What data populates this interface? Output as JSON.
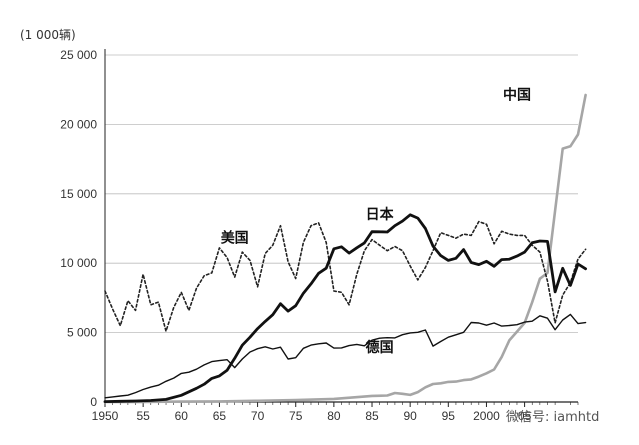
{
  "chart_data": {
    "type": "line",
    "unit_label": "(1 000辆)",
    "xlim": [
      1950,
      2012
    ],
    "ylim": [
      0,
      25000
    ],
    "grid": true,
    "x_tick_labels": [
      {
        "x": 1950,
        "label": "1950"
      },
      {
        "x": 1955,
        "label": "55"
      },
      {
        "x": 1960,
        "label": "60"
      },
      {
        "x": 1965,
        "label": "65"
      },
      {
        "x": 1970,
        "label": "70"
      },
      {
        "x": 1975,
        "label": "75"
      },
      {
        "x": 1980,
        "label": "80"
      },
      {
        "x": 1985,
        "label": "85"
      },
      {
        "x": 1990,
        "label": "90"
      },
      {
        "x": 1995,
        "label": "95"
      },
      {
        "x": 2000,
        "label": "2000"
      },
      {
        "x": 2005,
        "label": "05"
      }
    ],
    "y_ticks": [
      {
        "y": 0,
        "label": "0"
      },
      {
        "y": 5000,
        "label": "5 000"
      },
      {
        "y": 10000,
        "label": "10 000"
      },
      {
        "y": 15000,
        "label": "15 000"
      },
      {
        "y": 20000,
        "label": "20 000"
      },
      {
        "y": 25000,
        "label": "25 000"
      }
    ],
    "series": [
      {
        "name": "美国",
        "label_pos": {
          "x": 1967,
          "y": 11500
        },
        "style": "dotted",
        "color": "#222222",
        "points": [
          [
            1950,
            8000
          ],
          [
            1951,
            6700
          ],
          [
            1952,
            5500
          ],
          [
            1953,
            7300
          ],
          [
            1954,
            6600
          ],
          [
            1955,
            9200
          ],
          [
            1956,
            7000
          ],
          [
            1957,
            7200
          ],
          [
            1958,
            5100
          ],
          [
            1959,
            6800
          ],
          [
            1960,
            7900
          ],
          [
            1961,
            6600
          ],
          [
            1962,
            8200
          ],
          [
            1963,
            9100
          ],
          [
            1964,
            9300
          ],
          [
            1965,
            11100
          ],
          [
            1966,
            10400
          ],
          [
            1967,
            9000
          ],
          [
            1968,
            10800
          ],
          [
            1969,
            10200
          ],
          [
            1970,
            8300
          ],
          [
            1971,
            10700
          ],
          [
            1972,
            11300
          ],
          [
            1973,
            12700
          ],
          [
            1974,
            10100
          ],
          [
            1975,
            8900
          ],
          [
            1976,
            11500
          ],
          [
            1977,
            12700
          ],
          [
            1978,
            12900
          ],
          [
            1979,
            11500
          ],
          [
            1980,
            8000
          ],
          [
            1981,
            7900
          ],
          [
            1982,
            7000
          ],
          [
            1983,
            9200
          ],
          [
            1984,
            10900
          ],
          [
            1985,
            11700
          ],
          [
            1986,
            11300
          ],
          [
            1987,
            10900
          ],
          [
            1988,
            11200
          ],
          [
            1989,
            10900
          ],
          [
            1990,
            9800
          ],
          [
            1991,
            8800
          ],
          [
            1992,
            9700
          ],
          [
            1993,
            10900
          ],
          [
            1994,
            12200
          ],
          [
            1995,
            12000
          ],
          [
            1996,
            11800
          ],
          [
            1997,
            12100
          ],
          [
            1998,
            12000
          ],
          [
            1999,
            13000
          ],
          [
            2000,
            12800
          ],
          [
            2001,
            11400
          ],
          [
            2002,
            12300
          ],
          [
            2003,
            12100
          ],
          [
            2004,
            12000
          ],
          [
            2005,
            12000
          ],
          [
            2006,
            11300
          ],
          [
            2007,
            10800
          ],
          [
            2008,
            8700
          ],
          [
            2009,
            5700
          ],
          [
            2010,
            7700
          ],
          [
            2011,
            8600
          ],
          [
            2012,
            10300
          ],
          [
            2013,
            11000
          ]
        ]
      },
      {
        "name": "日本",
        "label_pos": {
          "x": 1986,
          "y": 13200
        },
        "style": "solid-thick",
        "color": "#111111",
        "points": [
          [
            1950,
            30
          ],
          [
            1952,
            50
          ],
          [
            1954,
            70
          ],
          [
            1956,
            110
          ],
          [
            1958,
            190
          ],
          [
            1960,
            480
          ],
          [
            1962,
            990
          ],
          [
            1963,
            1280
          ],
          [
            1964,
            1700
          ],
          [
            1965,
            1880
          ],
          [
            1966,
            2290
          ],
          [
            1967,
            3150
          ],
          [
            1968,
            4090
          ],
          [
            1969,
            4670
          ],
          [
            1970,
            5290
          ],
          [
            1971,
            5810
          ],
          [
            1972,
            6290
          ],
          [
            1973,
            7080
          ],
          [
            1974,
            6550
          ],
          [
            1975,
            6940
          ],
          [
            1976,
            7840
          ],
          [
            1977,
            8510
          ],
          [
            1978,
            9270
          ],
          [
            1979,
            9640
          ],
          [
            1980,
            11040
          ],
          [
            1981,
            11180
          ],
          [
            1982,
            10730
          ],
          [
            1983,
            11110
          ],
          [
            1984,
            11460
          ],
          [
            1985,
            12270
          ],
          [
            1986,
            12260
          ],
          [
            1987,
            12250
          ],
          [
            1988,
            12700
          ],
          [
            1989,
            13030
          ],
          [
            1990,
            13490
          ],
          [
            1991,
            13250
          ],
          [
            1992,
            12500
          ],
          [
            1993,
            11230
          ],
          [
            1994,
            10550
          ],
          [
            1995,
            10200
          ],
          [
            1996,
            10350
          ],
          [
            1997,
            10980
          ],
          [
            1998,
            10050
          ],
          [
            1999,
            9900
          ],
          [
            2000,
            10140
          ],
          [
            2001,
            9780
          ],
          [
            2002,
            10260
          ],
          [
            2003,
            10290
          ],
          [
            2004,
            10510
          ],
          [
            2005,
            10800
          ],
          [
            2006,
            11480
          ],
          [
            2007,
            11600
          ],
          [
            2008,
            11570
          ],
          [
            2009,
            7930
          ],
          [
            2010,
            9630
          ],
          [
            2011,
            8400
          ],
          [
            2012,
            9940
          ],
          [
            2013,
            9600
          ]
        ]
      },
      {
        "name": "德国",
        "label_pos": {
          "x": 1986,
          "y": 3600
        },
        "style": "solid",
        "color": "#111111",
        "points": [
          [
            1950,
            300
          ],
          [
            1951,
            370
          ],
          [
            1952,
            430
          ],
          [
            1953,
            490
          ],
          [
            1954,
            680
          ],
          [
            1955,
            900
          ],
          [
            1956,
            1070
          ],
          [
            1957,
            1210
          ],
          [
            1958,
            1490
          ],
          [
            1959,
            1720
          ],
          [
            1960,
            2060
          ],
          [
            1961,
            2150
          ],
          [
            1962,
            2360
          ],
          [
            1963,
            2670
          ],
          [
            1964,
            2910
          ],
          [
            1965,
            2980
          ],
          [
            1966,
            3050
          ],
          [
            1967,
            2480
          ],
          [
            1968,
            3100
          ],
          [
            1969,
            3600
          ],
          [
            1970,
            3840
          ],
          [
            1971,
            3980
          ],
          [
            1972,
            3820
          ],
          [
            1973,
            3950
          ],
          [
            1974,
            3100
          ],
          [
            1975,
            3190
          ],
          [
            1976,
            3870
          ],
          [
            1977,
            4100
          ],
          [
            1978,
            4190
          ],
          [
            1979,
            4250
          ],
          [
            1980,
            3880
          ],
          [
            1981,
            3900
          ],
          [
            1982,
            4060
          ],
          [
            1983,
            4150
          ],
          [
            1984,
            4050
          ],
          [
            1985,
            4450
          ],
          [
            1986,
            4600
          ],
          [
            1987,
            4630
          ],
          [
            1988,
            4620
          ],
          [
            1989,
            4850
          ],
          [
            1990,
            4980
          ],
          [
            1991,
            5020
          ],
          [
            1992,
            5190
          ],
          [
            1993,
            4030
          ],
          [
            1994,
            4360
          ],
          [
            1995,
            4670
          ],
          [
            1996,
            4840
          ],
          [
            1997,
            5020
          ],
          [
            1998,
            5730
          ],
          [
            1999,
            5690
          ],
          [
            2000,
            5530
          ],
          [
            2001,
            5690
          ],
          [
            2002,
            5470
          ],
          [
            2003,
            5510
          ],
          [
            2004,
            5570
          ],
          [
            2005,
            5760
          ],
          [
            2006,
            5820
          ],
          [
            2007,
            6210
          ],
          [
            2008,
            6040
          ],
          [
            2009,
            5210
          ],
          [
            2010,
            5910
          ],
          [
            2011,
            6310
          ],
          [
            2012,
            5650
          ],
          [
            2013,
            5720
          ]
        ]
      },
      {
        "name": "中国",
        "label_pos": {
          "x": 2004,
          "y": 21800
        },
        "style": "solid-gray",
        "color": "#a6a6a6",
        "points": [
          [
            1950,
            0
          ],
          [
            1955,
            0
          ],
          [
            1958,
            20
          ],
          [
            1960,
            30
          ],
          [
            1965,
            40
          ],
          [
            1970,
            90
          ],
          [
            1975,
            140
          ],
          [
            1980,
            220
          ],
          [
            1985,
            440
          ],
          [
            1987,
            470
          ],
          [
            1988,
            650
          ],
          [
            1989,
            590
          ],
          [
            1990,
            510
          ],
          [
            1991,
            710
          ],
          [
            1992,
            1060
          ],
          [
            1993,
            1300
          ],
          [
            1994,
            1350
          ],
          [
            1995,
            1450
          ],
          [
            1996,
            1470
          ],
          [
            1997,
            1580
          ],
          [
            1998,
            1630
          ],
          [
            1999,
            1830
          ],
          [
            2000,
            2070
          ],
          [
            2001,
            2340
          ],
          [
            2002,
            3250
          ],
          [
            2003,
            4440
          ],
          [
            2004,
            5070
          ],
          [
            2005,
            5700
          ],
          [
            2006,
            7190
          ],
          [
            2007,
            8880
          ],
          [
            2008,
            9300
          ],
          [
            2009,
            13790
          ],
          [
            2010,
            18260
          ],
          [
            2011,
            18420
          ],
          [
            2012,
            19270
          ],
          [
            2013,
            22120
          ]
        ]
      }
    ]
  },
  "watermark": "微信号: iamhtd"
}
